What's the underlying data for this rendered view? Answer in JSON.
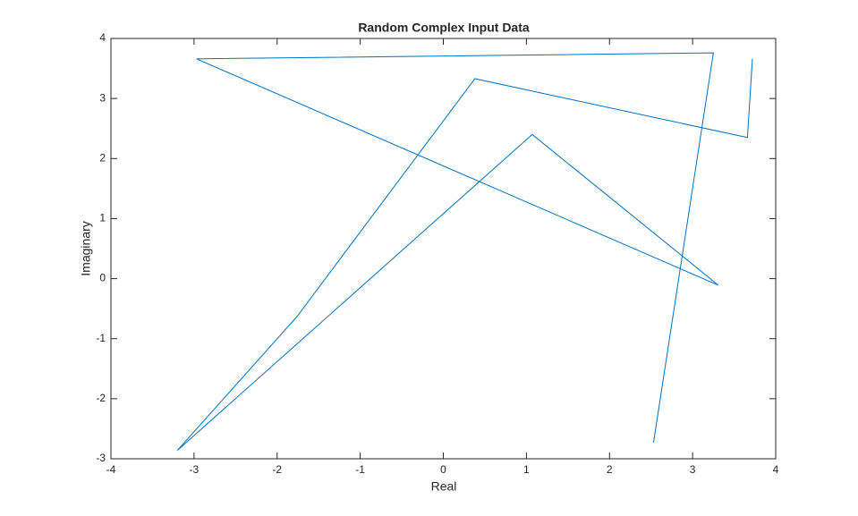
{
  "chart_data": {
    "type": "line",
    "title": "Random Complex Input Data",
    "x_label": "Real",
    "y_label": "Imaginary",
    "x": [
      2.53,
      3.25,
      -2.97,
      3.31,
      1.07,
      -3.2,
      -1.76,
      0.38,
      3.66,
      3.72
    ],
    "series": [
      {
        "color": "#0072bd",
        "values": [
          -2.73,
          3.76,
          3.66,
          -0.11,
          2.4,
          -2.86,
          -0.63,
          3.33,
          2.35,
          3.66
        ]
      }
    ],
    "xlim": [
      -4,
      4
    ],
    "xticks": [
      -4,
      -3,
      -2,
      -1,
      0,
      1,
      2,
      3,
      4
    ],
    "ylim": [
      -3,
      4
    ],
    "yticks": [
      -3,
      -2,
      -1,
      0,
      1,
      2,
      3,
      4
    ],
    "grid": false
  }
}
